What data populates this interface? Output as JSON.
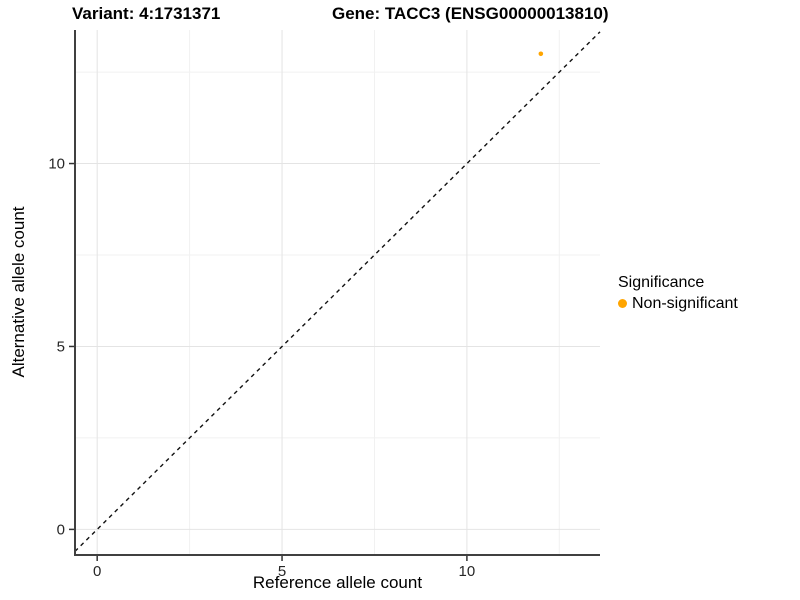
{
  "header": {
    "variant_title": "Variant: 4:1731371",
    "gene_title": "Gene: TACC3 (ENSG00000013810)"
  },
  "chart_data": {
    "type": "scatter",
    "xlabel": "Reference allele count",
    "ylabel": "Alternative allele count",
    "xlim": [
      -0.6,
      13.6
    ],
    "ylim": [
      -0.7,
      13.65
    ],
    "x_ticks": [
      0,
      5,
      10
    ],
    "y_ticks": [
      0,
      5,
      10
    ],
    "x_minor_ticks": [
      2.5,
      7.5,
      12.5
    ],
    "y_minor_ticks": [
      2.5,
      7.5,
      12.5
    ],
    "grid": "major and minor gridlines, light gray on white",
    "series": [
      {
        "name": "Non-significant",
        "color": "#FFA500",
        "points": [
          {
            "x": 12,
            "y": 13
          }
        ]
      }
    ],
    "reference_line": {
      "equation": "y = x",
      "style": "dashed",
      "color": "#111111"
    },
    "legend": {
      "title": "Significance",
      "position": "right",
      "items": [
        {
          "label": "Non-significant",
          "color": "#FFA500"
        }
      ]
    }
  },
  "colors": {
    "background": "#ffffff",
    "axis_line": "#404040",
    "tick_mark": "#333333",
    "tick_text": "#262626",
    "grid_major": "#e4e4e4",
    "grid_minor": "#f1f1f1",
    "point": "#FFA500"
  }
}
